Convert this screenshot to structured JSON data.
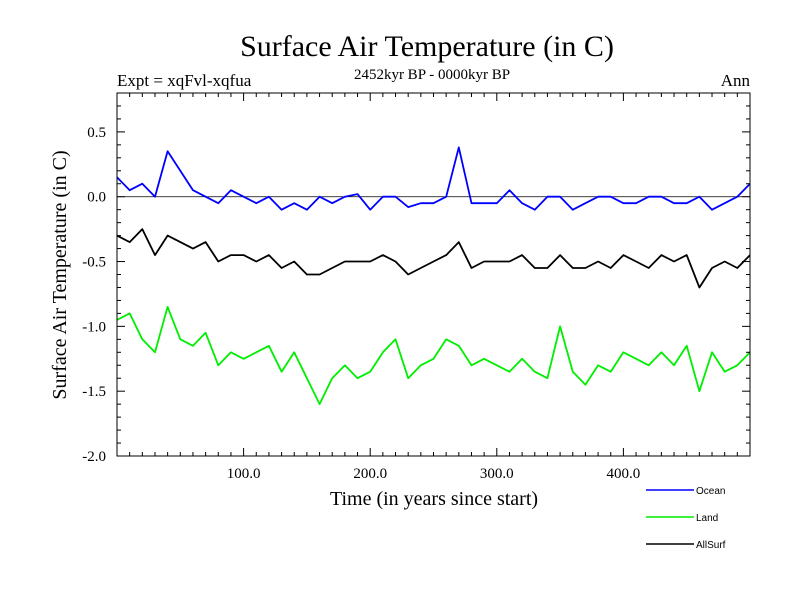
{
  "chart_data": {
    "type": "line",
    "title": "Surface Air Temperature (in C)",
    "subtitle": "2452kyr BP - 0000kyr BP",
    "left_label": "Expt = xqFvl-xqfua",
    "right_label": "Ann",
    "xlabel": "Time (in years since start)",
    "ylabel": "Surface Air Temperature (in C)",
    "xlim": [
      0,
      500
    ],
    "ylim": [
      -2.0,
      0.8
    ],
    "x_ticks": [
      100,
      200,
      300,
      400
    ],
    "x_tick_labels": [
      "100.0",
      "200.0",
      "300.0",
      "400.0"
    ],
    "y_ticks": [
      0.5,
      0.0,
      -0.5,
      -1.0,
      -1.5,
      -2.0
    ],
    "y_tick_labels": [
      "0.5",
      "0.0",
      "-0.5",
      "-1.0",
      "-1.5",
      "-2.0"
    ],
    "zero_line": 0.0,
    "legend_position": "bottom-right",
    "series": [
      {
        "name": "Ocean",
        "color": "#0000ff",
        "x": [
          0,
          10,
          20,
          30,
          40,
          50,
          60,
          70,
          80,
          90,
          100,
          110,
          120,
          130,
          140,
          150,
          160,
          170,
          180,
          190,
          200,
          210,
          220,
          230,
          240,
          250,
          260,
          270,
          280,
          290,
          300,
          310,
          320,
          330,
          340,
          350,
          360,
          370,
          380,
          390,
          400,
          410,
          420,
          430,
          440,
          450,
          460,
          470,
          480,
          490,
          500
        ],
        "values": [
          0.15,
          0.05,
          0.1,
          0.0,
          0.35,
          0.2,
          0.05,
          0.0,
          -0.05,
          0.05,
          0.0,
          -0.05,
          0.0,
          -0.1,
          -0.05,
          -0.1,
          0.0,
          -0.05,
          0.0,
          0.02,
          -0.1,
          0.0,
          0.0,
          -0.08,
          -0.05,
          -0.05,
          0.0,
          0.38,
          -0.05,
          -0.05,
          -0.05,
          0.05,
          -0.05,
          -0.1,
          0.0,
          0.0,
          -0.1,
          -0.05,
          0.0,
          0.0,
          -0.05,
          -0.05,
          0.0,
          0.0,
          -0.05,
          -0.05,
          0.0,
          -0.1,
          -0.05,
          0.0,
          0.1
        ]
      },
      {
        "name": "Land",
        "color": "#00ee00",
        "x": [
          0,
          10,
          20,
          30,
          40,
          50,
          60,
          70,
          80,
          90,
          100,
          110,
          120,
          130,
          140,
          150,
          160,
          170,
          180,
          190,
          200,
          210,
          220,
          230,
          240,
          250,
          260,
          270,
          280,
          290,
          300,
          310,
          320,
          330,
          340,
          350,
          360,
          370,
          380,
          390,
          400,
          410,
          420,
          430,
          440,
          450,
          460,
          470,
          480,
          490,
          500
        ],
        "values": [
          -0.95,
          -0.9,
          -1.1,
          -1.2,
          -0.85,
          -1.1,
          -1.15,
          -1.05,
          -1.3,
          -1.2,
          -1.25,
          -1.2,
          -1.15,
          -1.35,
          -1.2,
          -1.4,
          -1.6,
          -1.4,
          -1.3,
          -1.4,
          -1.35,
          -1.2,
          -1.1,
          -1.4,
          -1.3,
          -1.25,
          -1.1,
          -1.15,
          -1.3,
          -1.25,
          -1.3,
          -1.35,
          -1.25,
          -1.35,
          -1.4,
          -1.0,
          -1.35,
          -1.45,
          -1.3,
          -1.35,
          -1.2,
          -1.25,
          -1.3,
          -1.2,
          -1.3,
          -1.15,
          -1.5,
          -1.2,
          -1.35,
          -1.3,
          -1.2
        ]
      },
      {
        "name": "AllSurf",
        "color": "#000000",
        "x": [
          0,
          10,
          20,
          30,
          40,
          50,
          60,
          70,
          80,
          90,
          100,
          110,
          120,
          130,
          140,
          150,
          160,
          170,
          180,
          190,
          200,
          210,
          220,
          230,
          240,
          250,
          260,
          270,
          280,
          290,
          300,
          310,
          320,
          330,
          340,
          350,
          360,
          370,
          380,
          390,
          400,
          410,
          420,
          430,
          440,
          450,
          460,
          470,
          480,
          490,
          500
        ],
        "values": [
          -0.3,
          -0.35,
          -0.25,
          -0.45,
          -0.3,
          -0.35,
          -0.4,
          -0.35,
          -0.5,
          -0.45,
          -0.45,
          -0.5,
          -0.45,
          -0.55,
          -0.5,
          -0.6,
          -0.6,
          -0.55,
          -0.5,
          -0.5,
          -0.5,
          -0.45,
          -0.5,
          -0.6,
          -0.55,
          -0.5,
          -0.45,
          -0.35,
          -0.55,
          -0.5,
          -0.5,
          -0.5,
          -0.45,
          -0.55,
          -0.55,
          -0.45,
          -0.55,
          -0.55,
          -0.5,
          -0.55,
          -0.45,
          -0.5,
          -0.55,
          -0.45,
          -0.5,
          -0.45,
          -0.7,
          -0.55,
          -0.5,
          -0.55,
          -0.45
        ]
      }
    ]
  }
}
